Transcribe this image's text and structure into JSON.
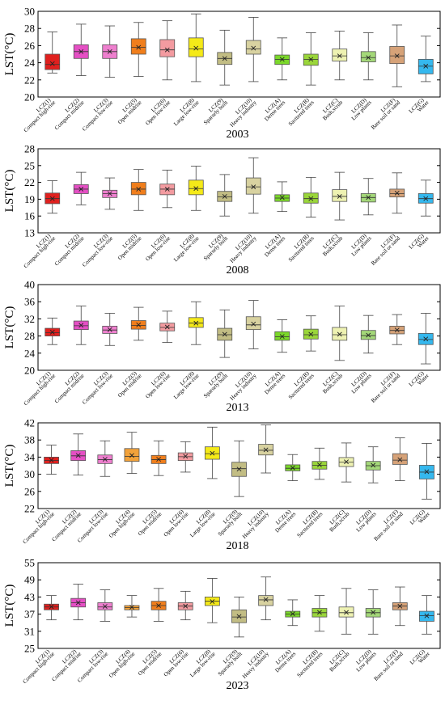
{
  "y_axis_label": "LST(°C)",
  "chart_data": [
    {
      "type": "boxplot",
      "title": "2003",
      "ylabel": "LST(°C)",
      "ylim": [
        20,
        30
      ],
      "yticks": [
        20,
        22,
        24,
        26,
        28,
        30
      ],
      "grid": false,
      "categories": [
        "LCZ(1)",
        "LCZ(2)",
        "LCZ(3)",
        "LCZ(5)",
        "LCZ(6)",
        "LCZ(8)",
        "LCZ(9)",
        "LCZ(10)",
        "LCZ(A)",
        "LCZ(B)",
        "LCZ(C)",
        "LCZ(D)",
        "LCZ(F)",
        "LCZ(G)"
      ],
      "descriptions": [
        "Compact high-rise",
        "Compact midrise",
        "Compact low-rise",
        "Open midrise",
        "Open low-rise",
        "Large low-rise",
        "Sparsely built",
        "Heavy industry",
        "Dense trees",
        "Sacttered trees",
        "Bush,scrub",
        "Low plants",
        "Bare soil or sand",
        "Water"
      ],
      "colors": [
        "#e0201e",
        "#e54fc4",
        "#ee7fce",
        "#f07e1c",
        "#f39ba0",
        "#f5ea18",
        "#c2bd84",
        "#d8d2a0",
        "#7bd82a",
        "#9ad63a",
        "#eef2b2",
        "#a4d879",
        "#d6a278",
        "#35b8ee"
      ],
      "min": [
        22.8,
        22.5,
        22.3,
        22.4,
        22.0,
        21.8,
        21.4,
        21.8,
        22.0,
        21.4,
        22.0,
        22.0,
        21.2,
        21.8
      ],
      "q1": [
        23.2,
        24.5,
        24.5,
        25.0,
        24.7,
        24.7,
        23.8,
        25.0,
        23.8,
        23.7,
        24.2,
        24.1,
        23.9,
        22.7
      ],
      "median": [
        23.8,
        25.3,
        25.3,
        25.8,
        25.5,
        25.6,
        24.5,
        25.6,
        24.4,
        24.4,
        24.8,
        24.6,
        24.8,
        23.6
      ],
      "mean": [
        23.9,
        25.3,
        25.3,
        25.8,
        25.5,
        25.7,
        24.5,
        25.7,
        24.4,
        24.4,
        24.8,
        24.6,
        24.8,
        23.6
      ],
      "q3": [
        25.0,
        26.1,
        26.1,
        26.8,
        26.7,
        26.9,
        25.2,
        26.6,
        24.9,
        25.0,
        25.6,
        25.3,
        25.9,
        24.4
      ],
      "max": [
        27.6,
        28.5,
        28.3,
        28.7,
        28.9,
        29.7,
        27.8,
        29.3,
        26.9,
        27.5,
        27.7,
        27.5,
        28.4,
        27.1
      ]
    },
    {
      "type": "boxplot",
      "title": "2008",
      "ylabel": "LST(°C)",
      "ylim": [
        13,
        28
      ],
      "yticks": [
        13,
        16,
        19,
        22,
        25,
        28
      ],
      "grid": false,
      "categories": [
        "LCZ(1)",
        "LCZ(2)",
        "LCZ(3)",
        "LCZ(5)",
        "LCZ(6)",
        "LCZ(8)",
        "LCZ(9)",
        "LCZ(10)",
        "LCZ(A)",
        "LCZ(B)",
        "LCZ(C)",
        "LCZ(D)",
        "LCZ(F)",
        "LCZ(G)"
      ],
      "descriptions": [
        "Compact high-rise",
        "Compact midrise",
        "Compact low-rise",
        "Open midrise",
        "Open low-rise",
        "Large low-rise",
        "Sparsely built",
        "Heavy industry",
        "Dense trees",
        "Sacttered trees",
        "Bush,scrub",
        "Low plants",
        "Bare soil or sand",
        "Water"
      ],
      "colors": [
        "#e0201e",
        "#e54fc4",
        "#ee7fce",
        "#f07e1c",
        "#f39ba0",
        "#f5ea18",
        "#c2bd84",
        "#d8d2a0",
        "#7bd82a",
        "#9ad63a",
        "#eef2b2",
        "#a4d879",
        "#d6a278",
        "#35b8ee"
      ],
      "min": [
        16.5,
        18.0,
        17.2,
        17.0,
        17.5,
        17.0,
        16.0,
        16.5,
        16.8,
        15.8,
        15.3,
        16.2,
        16.5,
        16.0
      ],
      "q1": [
        18.2,
        20.0,
        19.3,
        19.8,
        19.8,
        19.8,
        18.6,
        19.9,
        18.6,
        18.3,
        18.6,
        18.5,
        19.4,
        18.3
      ],
      "median": [
        19.1,
        20.8,
        20.0,
        20.8,
        20.8,
        20.9,
        19.4,
        21.2,
        19.2,
        19.1,
        19.5,
        19.3,
        20.0,
        19.1
      ],
      "mean": [
        19.1,
        20.8,
        20.0,
        20.8,
        20.8,
        20.9,
        19.5,
        21.2,
        19.3,
        19.1,
        19.5,
        19.3,
        20.1,
        19.1
      ],
      "q3": [
        20.1,
        21.6,
        20.6,
        22.0,
        21.7,
        22.4,
        20.4,
        22.8,
        19.8,
        20.1,
        20.7,
        20.0,
        20.8,
        20.0
      ],
      "max": [
        22.3,
        23.8,
        22.8,
        24.3,
        24.2,
        24.9,
        23.4,
        26.4,
        22.1,
        22.9,
        23.8,
        22.7,
        23.7,
        22.4
      ]
    },
    {
      "type": "boxplot",
      "title": "2013",
      "ylabel": "LST(°C)",
      "ylim": [
        20,
        40
      ],
      "yticks": [
        20,
        24,
        28,
        32,
        36,
        40
      ],
      "grid": false,
      "categories": [
        "LCZ(1)",
        "LCZ(2)",
        "LCZ(3)",
        "LCZ(5)",
        "LCZ(6)",
        "LCZ(8)",
        "LCZ(9)",
        "LCZ(10)",
        "LCZ(A)",
        "LCZ(B)",
        "LCZ(C)",
        "LCZ(D)",
        "LCZ(F)",
        "LCZ(G)"
      ],
      "descriptions": [
        "Compact high-rise",
        "Compact midrise",
        "Compact low-rise",
        "Open midrise",
        "Open low-rise",
        "Large low-rise",
        "Sparsely built",
        "Heavy industry",
        "Dense trees",
        "Sacttered trees",
        "Bush,scrub",
        "Low plants",
        "Bare soil or sand",
        "Water"
      ],
      "colors": [
        "#e0201e",
        "#e54fc4",
        "#ee7fce",
        "#f07e1c",
        "#f39ba0",
        "#f5ea18",
        "#c2bd84",
        "#d8d2a0",
        "#7bd82a",
        "#9ad63a",
        "#eef2b2",
        "#a4d879",
        "#d6a278",
        "#35b8ee"
      ],
      "min": [
        26.0,
        26.0,
        25.8,
        27.0,
        26.5,
        26.0,
        23.0,
        25.0,
        24.2,
        24.5,
        22.3,
        24.0,
        26.0,
        21.5
      ],
      "q1": [
        28.0,
        29.5,
        28.6,
        29.6,
        29.2,
        30.0,
        27.0,
        29.5,
        27.0,
        27.3,
        27.0,
        27.2,
        28.5,
        26.0
      ],
      "median": [
        28.8,
        30.4,
        29.4,
        30.5,
        30.0,
        31.0,
        28.3,
        30.6,
        27.8,
        28.3,
        28.3,
        28.1,
        29.3,
        27.2
      ],
      "mean": [
        28.9,
        30.5,
        29.5,
        30.6,
        30.1,
        31.0,
        28.4,
        30.8,
        27.9,
        28.4,
        28.4,
        28.2,
        29.4,
        27.3
      ],
      "q3": [
        29.8,
        31.5,
        30.3,
        31.6,
        31.0,
        32.3,
        29.8,
        32.5,
        29.0,
        29.6,
        30.0,
        29.3,
        30.3,
        28.6
      ],
      "max": [
        32.2,
        35.0,
        33.3,
        34.7,
        33.8,
        36.0,
        34.1,
        36.3,
        31.8,
        32.7,
        35.0,
        32.8,
        33.0,
        33.3
      ]
    },
    {
      "type": "boxplot",
      "title": "2018",
      "ylabel": "LST(°C)",
      "ylim": [
        22,
        42
      ],
      "yticks": [
        22,
        26,
        30,
        34,
        38,
        42
      ],
      "grid": false,
      "categories": [
        "LCZ(1)",
        "LCZ(2)",
        "LCZ(3)",
        "LCZ(4)",
        "LCZ(5)",
        "LCZ(6)",
        "LCZ(8)",
        "LCZ(9)",
        "LCZ(10)",
        "LCZ(A)",
        "LCZ(B)",
        "LCZ(C)",
        "LCZ(D)",
        "LCZ(F)",
        "LCZ(G)"
      ],
      "descriptions": [
        "Compact high-rise",
        "Compact midrise",
        "Compact low-rise",
        "Open high-rise",
        "Open midrise",
        "Open low-rise",
        "Large low-rise",
        "Sparsely built",
        "Heavy industry",
        "Dense trees",
        "Sacttered trees",
        "Bush,scrub",
        "Low plants",
        "Bare soil or sand",
        "Water"
      ],
      "colors": [
        "#e0201e",
        "#e54fc4",
        "#ee7fce",
        "#f2a23a",
        "#f07e1c",
        "#f39ba0",
        "#f5ea18",
        "#c2bd84",
        "#d8d2a0",
        "#7bd82a",
        "#9ad63a",
        "#eef2b2",
        "#a4d879",
        "#d6a278",
        "#35b8ee"
      ],
      "min": [
        30.0,
        29.8,
        29.5,
        30.2,
        29.7,
        30.5,
        29.0,
        24.8,
        30.3,
        28.5,
        28.8,
        28.2,
        28.0,
        28.5,
        24.2
      ],
      "q1": [
        32.5,
        33.2,
        32.5,
        33.0,
        32.5,
        33.2,
        33.5,
        29.5,
        34.5,
        30.8,
        31.2,
        31.8,
        31.0,
        32.3,
        28.9
      ],
      "median": [
        33.2,
        34.3,
        33.4,
        34.2,
        33.4,
        34.1,
        34.8,
        31.3,
        35.6,
        31.4,
        32.1,
        32.8,
        32.0,
        33.3,
        30.5
      ],
      "mean": [
        33.3,
        34.4,
        33.5,
        34.4,
        33.5,
        34.2,
        34.9,
        31.2,
        35.7,
        31.5,
        32.2,
        32.9,
        32.1,
        33.4,
        30.6
      ],
      "q3": [
        34.0,
        35.5,
        34.5,
        36.0,
        34.4,
        35.0,
        36.4,
        32.8,
        37.0,
        32.2,
        33.0,
        33.9,
        33.0,
        34.8,
        32.1
      ],
      "max": [
        36.8,
        39.4,
        37.8,
        39.8,
        37.8,
        37.6,
        41.0,
        37.8,
        41.5,
        34.6,
        36.1,
        37.3,
        36.4,
        38.5,
        37.2
      ]
    },
    {
      "type": "boxplot",
      "title": "2023",
      "ylabel": "LST(°C)",
      "ylim": [
        25,
        55
      ],
      "yticks": [
        25,
        31,
        37,
        43,
        49,
        55
      ],
      "grid": false,
      "categories": [
        "LCZ(1)",
        "LCZ(2)",
        "LCZ(3)",
        "LCZ(4)",
        "LCZ(5)",
        "LCZ(6)",
        "LCZ(8)",
        "LCZ(9)",
        "LCZ(10)",
        "LCZ(A)",
        "LCZ(B)",
        "LCZ(C)",
        "LCZ(D)",
        "LCZ(F)",
        "LCZ(G)"
      ],
      "descriptions": [
        "Compact high-rise",
        "Compact midrise",
        "Compact low-rise",
        "Open high-rise",
        "Open midrise",
        "Open low-rise",
        "Large low-rise",
        "Sparsely built",
        "Heavy industry",
        "Dense trees",
        "Sacttered trees",
        "Bush,scrub",
        "Low plants",
        "Bare soil or sand",
        "Water"
      ],
      "colors": [
        "#e0201e",
        "#e54fc4",
        "#ee7fce",
        "#f2a23a",
        "#f07e1c",
        "#f39ba0",
        "#f5ea18",
        "#c2bd84",
        "#d8d2a0",
        "#7bd82a",
        "#9ad63a",
        "#eef2b2",
        "#a4d879",
        "#d6a278",
        "#35b8ee"
      ],
      "min": [
        35.0,
        35.0,
        34.5,
        36.0,
        34.5,
        35.0,
        34.0,
        29.0,
        35.0,
        33.0,
        31.0,
        30.0,
        30.0,
        33.0,
        30.0
      ],
      "q1": [
        38.5,
        39.5,
        38.5,
        38.5,
        38.5,
        38.5,
        40.0,
        34.0,
        40.0,
        36.0,
        36.0,
        36.0,
        36.0,
        38.5,
        34.5
      ],
      "median": [
        39.5,
        41.0,
        39.5,
        39.3,
        40.0,
        39.8,
        41.5,
        36.0,
        42.0,
        37.0,
        37.5,
        37.5,
        37.5,
        39.8,
        36.5
      ],
      "mean": [
        39.6,
        41.0,
        39.7,
        39.4,
        40.0,
        39.8,
        41.4,
        36.2,
        42.1,
        37.1,
        37.6,
        37.6,
        37.6,
        39.8,
        36.4
      ],
      "q3": [
        40.5,
        42.5,
        41.0,
        40.0,
        41.5,
        41.0,
        43.0,
        38.5,
        43.5,
        38.0,
        39.0,
        39.5,
        39.0,
        41.0,
        38.0
      ],
      "max": [
        43.5,
        47.5,
        45.5,
        43.5,
        46.0,
        45.0,
        49.5,
        43.0,
        50.0,
        42.0,
        43.5,
        46.0,
        45.5,
        46.5,
        43.5
      ]
    }
  ]
}
